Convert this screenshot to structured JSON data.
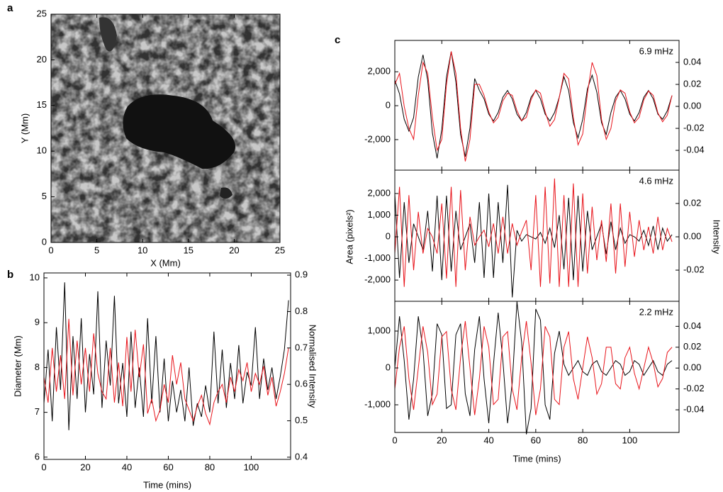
{
  "chart_data": [
    {
      "type": "image",
      "panel_label": "a",
      "x_label": "X (Mm)",
      "y_label": "Y (Mm)",
      "xlim": [
        0,
        25
      ],
      "ylim": [
        0,
        25
      ],
      "xticks": [
        0,
        5,
        10,
        15,
        20,
        25
      ],
      "yticks": [
        0,
        5,
        10,
        15,
        20,
        25
      ]
    },
    {
      "type": "line",
      "panel_label": "b",
      "x_label": "Time (mins)",
      "y_label": "Diameter (Mm)",
      "y2_label": "Normalised Intensity",
      "xlim": [
        0,
        119
      ],
      "xticks": [
        0,
        20,
        40,
        60,
        80,
        100
      ],
      "ylim": [
        5.95,
        10.11
      ],
      "yticks": [
        6,
        7,
        8,
        9,
        10
      ],
      "y2lim": [
        0.394,
        0.906
      ],
      "y2ticks": [
        0.4,
        0.5,
        0.6,
        0.7,
        0.8,
        0.9
      ],
      "x": [
        0,
        2,
        4,
        6,
        8,
        10,
        12,
        14,
        16,
        18,
        20,
        22,
        24,
        26,
        28,
        30,
        32,
        34,
        36,
        38,
        40,
        42,
        44,
        46,
        48,
        50,
        52,
        54,
        56,
        58,
        60,
        62,
        64,
        66,
        68,
        70,
        72,
        74,
        76,
        78,
        80,
        82,
        84,
        86,
        88,
        90,
        92,
        94,
        96,
        98,
        100,
        102,
        104,
        106,
        108,
        110,
        112,
        114,
        116,
        118
      ],
      "series": [
        {
          "color": "#000000",
          "axis": "y",
          "values": [
            7.2,
            8.4,
            6.8,
            8.9,
            7.5,
            9.9,
            6.6,
            8.7,
            7.3,
            9.1,
            7.0,
            8.3,
            7.4,
            9.7,
            7.1,
            8.6,
            7.6,
            9.6,
            7.2,
            8.1,
            6.9,
            8.8,
            7.1,
            8.0,
            6.9,
            9.1,
            7.2,
            8.7,
            7.0,
            8.2,
            6.8,
            7.7,
            7.0,
            7.5,
            6.8,
            8.0,
            6.7,
            7.2,
            6.9,
            7.6,
            7.0,
            8.8,
            7.2,
            8.4,
            7.1,
            8.1,
            7.3,
            8.5,
            7.2,
            7.9,
            7.6,
            8.9,
            7.3,
            8.2,
            7.5,
            8.0,
            7.3,
            7.8,
            8.4,
            9.5
          ]
        },
        {
          "color": "#e8141b",
          "axis": "y2",
          "values": [
            0.62,
            0.55,
            0.7,
            0.58,
            0.68,
            0.56,
            0.78,
            0.57,
            0.72,
            0.6,
            0.7,
            0.58,
            0.74,
            0.63,
            0.58,
            0.56,
            0.7,
            0.55,
            0.66,
            0.54,
            0.73,
            0.58,
            0.75,
            0.62,
            0.71,
            0.52,
            0.56,
            0.5,
            0.53,
            0.6,
            0.55,
            0.68,
            0.6,
            0.66,
            0.56,
            0.53,
            0.5,
            0.54,
            0.57,
            0.52,
            0.49,
            0.55,
            0.58,
            0.6,
            0.55,
            0.62,
            0.58,
            0.64,
            0.61,
            0.66,
            0.58,
            0.63,
            0.6,
            0.65,
            0.57,
            0.62,
            0.54,
            0.58,
            0.63,
            0.7
          ]
        }
      ]
    },
    {
      "type": "line",
      "panel_label": "c",
      "x_label": "Time (mins)",
      "y_label": "Area (pixels²)",
      "y2_label": "Intensity",
      "xlim": [
        0,
        121
      ],
      "xticks": [
        0,
        20,
        40,
        60,
        80,
        100
      ],
      "x": [
        0,
        2,
        4,
        6,
        8,
        10,
        12,
        14,
        16,
        18,
        20,
        22,
        24,
        26,
        28,
        30,
        32,
        34,
        36,
        38,
        40,
        42,
        44,
        46,
        48,
        50,
        52,
        54,
        56,
        58,
        60,
        62,
        64,
        66,
        68,
        70,
        72,
        74,
        76,
        78,
        80,
        82,
        84,
        86,
        88,
        90,
        92,
        94,
        96,
        98,
        100,
        102,
        104,
        106,
        108,
        110,
        112,
        114,
        116,
        118
      ],
      "panels": [
        {
          "annotation": "6.9 mHz",
          "ylim": [
            -3800,
            3850
          ],
          "yticks": [
            {
              "value": -2000,
              "label": "-2,000"
            },
            0,
            {
              "value": 2000,
              "label": "2,000"
            }
          ],
          "y2lim": [
            -0.058,
            0.06
          ],
          "y2ticks": [
            -0.04,
            -0.02,
            {
              "value": 0,
              "label": "0.00"
            },
            0.02,
            0.04
          ],
          "series": [
            {
              "color": "#000000",
              "axis": "y",
              "values": [
                1500,
                700,
                -800,
                -1500,
                -700,
                1700,
                3000,
                1500,
                -1600,
                -3100,
                -1400,
                1700,
                3200,
                1400,
                -1700,
                -3000,
                -1300,
                1600,
                900,
                400,
                -500,
                -900,
                -400,
                500,
                900,
                400,
                -500,
                -900,
                -400,
                500,
                900,
                400,
                -500,
                -900,
                -400,
                500,
                1700,
                900,
                -1000,
                -1900,
                -800,
                1000,
                1800,
                800,
                -1000,
                -1700,
                -400,
                500,
                900,
                400,
                -500,
                -900,
                -400,
                500,
                900,
                400,
                -500,
                -800,
                -300,
                600
              ]
            },
            {
              "color": "#e8141b",
              "axis": "y2",
              "values": [
                0.02,
                0.03,
                0.0,
                -0.02,
                -0.03,
                0.01,
                0.04,
                0.03,
                -0.01,
                -0.04,
                -0.03,
                0.02,
                0.05,
                0.03,
                -0.02,
                -0.05,
                -0.03,
                0.02,
                0.02,
                0.01,
                -0.005,
                -0.015,
                -0.01,
                0.005,
                0.012,
                0.01,
                -0.004,
                -0.013,
                -0.01,
                0.006,
                0.015,
                0.012,
                -0.005,
                -0.018,
                -0.012,
                0.008,
                0.03,
                0.025,
                -0.01,
                -0.035,
                -0.025,
                0.012,
                0.04,
                0.028,
                -0.012,
                -0.03,
                -0.02,
                0.005,
                0.015,
                0.012,
                -0.005,
                -0.015,
                -0.01,
                0.006,
                0.014,
                0.01,
                -0.006,
                -0.014,
                -0.008,
                0.01
              ]
            }
          ]
        },
        {
          "annotation": "4.6 mHz",
          "ylim": [
            -2980,
            3080
          ],
          "yticks": [
            {
              "value": -2000,
              "label": "-2,000"
            },
            {
              "value": -1000,
              "label": "-1,000"
            },
            0,
            {
              "value": 1000,
              "label": "1,000"
            },
            {
              "value": 2000,
              "label": "2,000"
            }
          ],
          "y2lim": [
            -0.0387,
            0.04
          ],
          "y2ticks": [
            -0.02,
            {
              "value": 0,
              "label": "0.00"
            },
            0.02
          ],
          "series": [
            {
              "color": "#000000",
              "axis": "y",
              "values": [
                2000,
                -1900,
                1600,
                -1200,
                600,
                0,
                -600,
                1200,
                -1600,
                1900,
                -2000,
                1900,
                -1600,
                1200,
                -600,
                0,
                600,
                -1200,
                1600,
                -1900,
                2000,
                -1900,
                1600,
                -1200,
                2400,
                -2800,
                300,
                -200,
                100,
                0,
                -100,
                200,
                -300,
                400,
                -500,
                1000,
                -1500,
                1800,
                -2000,
                1900,
                -1600,
                1200,
                -600,
                0,
                600,
                -800,
                700,
                -600,
                400,
                -300,
                100,
                0,
                -200,
                300,
                -400,
                500,
                -600,
                400,
                -200,
                100
              ]
            },
            {
              "color": "#e8141b",
              "axis": "y2",
              "values": [
                -0.01,
                0.03,
                -0.03,
                0.025,
                -0.02,
                0.015,
                -0.01,
                0.005,
                0,
                -0.01,
                0.02,
                -0.025,
                0.03,
                -0.03,
                0.028,
                -0.02,
                0.012,
                -0.005,
                0,
                0.004,
                -0.006,
                0.008,
                -0.01,
                0.012,
                -0.01,
                0.008,
                -0.005,
                0.003,
                0.01,
                -0.02,
                0.025,
                -0.03,
                0.03,
                -0.028,
                0.035,
                -0.03,
                0.025,
                -0.03,
                0.032,
                -0.03,
                0.026,
                -0.022,
                0.018,
                -0.014,
                0.01,
                -0.015,
                0.02,
                -0.022,
                0.02,
                -0.018,
                0.015,
                -0.012,
                0.01,
                -0.008,
                0.006,
                -0.01,
                0.012,
                -0.008,
                0.005,
                -0.003
              ]
            }
          ]
        },
        {
          "annotation": "2.2 mHz",
          "ylim": [
            -1750,
            1808
          ],
          "yticks": [
            {
              "value": -1000,
              "label": "-1,000"
            },
            0,
            {
              "value": 1000,
              "label": "1,000"
            }
          ],
          "y2lim": [
            -0.0617,
            0.064
          ],
          "y2ticks": [
            -0.04,
            -0.02,
            {
              "value": 0,
              "label": "0.00"
            },
            0.02,
            0.04
          ],
          "series": [
            {
              "color": "#000000",
              "axis": "y",
              "values": [
                0,
                1400,
                200,
                -1400,
                -300,
                1400,
                500,
                -1300,
                -700,
                1200,
                900,
                -1100,
                -1000,
                900,
                1200,
                -700,
                -1300,
                500,
                1400,
                -300,
                -1500,
                100,
                1500,
                200,
                -1500,
                -400,
                1800,
                700,
                -1800,
                -1100,
                1600,
                1300,
                -1000,
                -1400,
                400,
                1000,
                100,
                -200,
                0,
                200,
                -100,
                -200,
                100,
                200,
                -100,
                -200,
                0,
                200,
                100,
                -200,
                -100,
                200,
                100,
                -200,
                0,
                200,
                -100,
                -200,
                100,
                200
              ]
            },
            {
              "color": "#e8141b",
              "axis": "y2",
              "values": [
                -0.02,
                0.02,
                0.04,
                -0.01,
                -0.04,
                0.0,
                0.04,
                0.015,
                -0.035,
                -0.025,
                0.03,
                0.035,
                -0.02,
                -0.04,
                0.01,
                0.045,
                0.0,
                -0.045,
                -0.01,
                0.04,
                0.02,
                -0.035,
                -0.03,
                0.03,
                0.035,
                -0.02,
                -0.04,
                0.01,
                0.045,
                0.005,
                -0.045,
                -0.02,
                0.04,
                0.03,
                -0.03,
                -0.035,
                0.02,
                0.035,
                -0.01,
                -0.03,
                0.0,
                0.03,
                0.01,
                -0.025,
                -0.015,
                0.02,
                0.02,
                -0.015,
                -0.02,
                0.01,
                0.02,
                -0.005,
                -0.02,
                0.0,
                0.02,
                0.005,
                -0.018,
                -0.01,
                0.015,
                0.02
              ]
            }
          ]
        }
      ]
    }
  ]
}
